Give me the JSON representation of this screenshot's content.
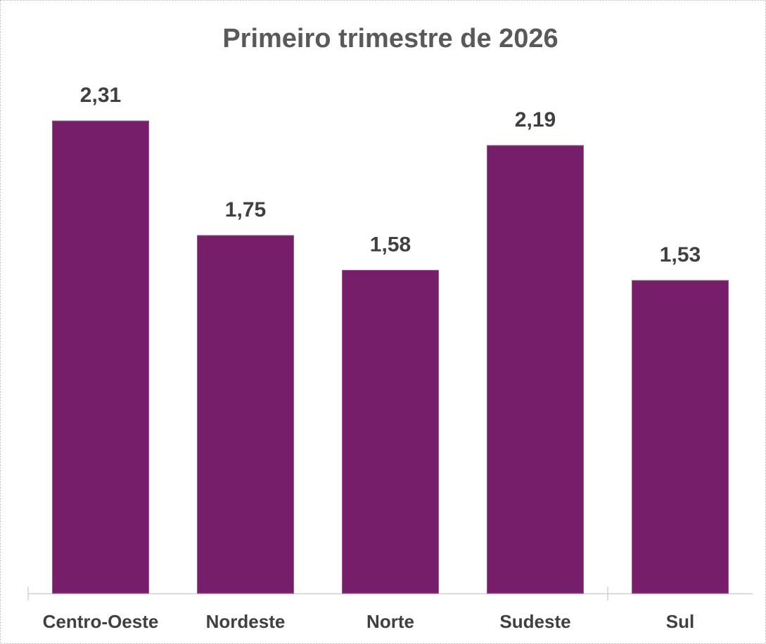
{
  "chart_data": {
    "type": "bar",
    "title": "Primeiro trimestre de 2026",
    "categories": [
      "Centro-Oeste",
      "Nordeste",
      "Norte",
      "Sudeste",
      "Sul"
    ],
    "values": [
      2.31,
      1.75,
      1.58,
      2.19,
      1.53
    ],
    "value_labels": [
      "2,31",
      "1,75",
      "1,58",
      "2,19",
      "1,53"
    ],
    "color": "#771e6a"
  }
}
